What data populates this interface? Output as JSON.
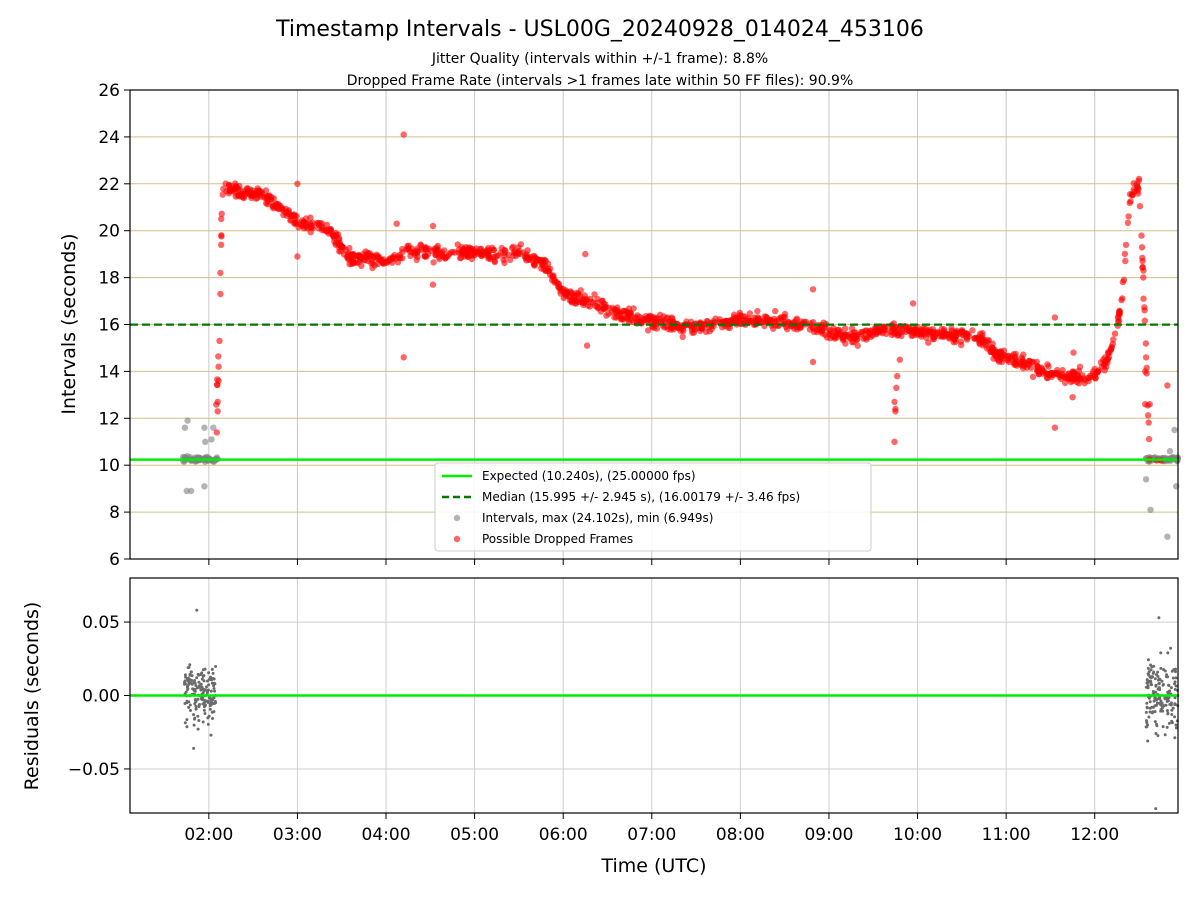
{
  "chart_data": {
    "type": "scatter",
    "title": "Timestamp Intervals - USL00G_20240928_014024_453106",
    "subtitles": [
      "Jitter Quality (intervals within +/-1 frame): 8.8%",
      "Dropped Frame Rate (intervals >1 frames late within 50 FF files): 90.9%"
    ],
    "xlabel": "Time (UTC)",
    "x_range_hours": [
      1.11,
      12.94
    ],
    "x_ticks": [
      {
        "value": 2,
        "label": "02:00"
      },
      {
        "value": 3,
        "label": "03:00"
      },
      {
        "value": 4,
        "label": "04:00"
      },
      {
        "value": 5,
        "label": "05:00"
      },
      {
        "value": 6,
        "label": "06:00"
      },
      {
        "value": 7,
        "label": "07:00"
      },
      {
        "value": 8,
        "label": "08:00"
      },
      {
        "value": 9,
        "label": "09:00"
      },
      {
        "value": 10,
        "label": "10:00"
      },
      {
        "value": 11,
        "label": "11:00"
      },
      {
        "value": 12,
        "label": "12:00"
      }
    ],
    "top_panel": {
      "ylabel": "Intervals (seconds)",
      "ylim": [
        6,
        26
      ],
      "y_ticks": [
        6,
        8,
        10,
        12,
        14,
        16,
        18,
        20,
        22,
        24,
        26
      ],
      "expected_interval": 10.24,
      "median_interval": 15.995,
      "legend_position": "lower-center",
      "legend": [
        "Expected (10.240s), (25.00000 fps)",
        "Median (15.995 +/- 2.945 s), (16.00179 +/- 3.46 fps)",
        "Intervals, max (24.102s), min (6.949s)",
        "Possible Dropped Frames"
      ],
      "dropped_frames_trend": [
        [
          2.08,
          12.2
        ],
        [
          2.12,
          16.0
        ],
        [
          2.15,
          21.6
        ],
        [
          2.2,
          21.9
        ],
        [
          2.4,
          21.6
        ],
        [
          2.6,
          21.6
        ],
        [
          2.8,
          21.0
        ],
        [
          3.0,
          20.4
        ],
        [
          3.2,
          20.2
        ],
        [
          3.4,
          19.9
        ],
        [
          3.5,
          19.3
        ],
        [
          3.6,
          18.8
        ],
        [
          3.8,
          18.9
        ],
        [
          4.0,
          18.6
        ],
        [
          4.1,
          18.8
        ],
        [
          4.2,
          19.1
        ],
        [
          4.5,
          19.1
        ],
        [
          5.0,
          19.1
        ],
        [
          5.3,
          19.0
        ],
        [
          5.5,
          19.1
        ],
        [
          5.8,
          18.5
        ],
        [
          6.0,
          17.3
        ],
        [
          6.3,
          17.0
        ],
        [
          6.6,
          16.5
        ],
        [
          7.0,
          16.1
        ],
        [
          7.3,
          15.9
        ],
        [
          7.6,
          15.9
        ],
        [
          8.0,
          16.2
        ],
        [
          8.3,
          16.2
        ],
        [
          8.6,
          16.0
        ],
        [
          9.0,
          15.7
        ],
        [
          9.3,
          15.4
        ],
        [
          9.6,
          15.8
        ],
        [
          10.0,
          15.7
        ],
        [
          10.4,
          15.5
        ],
        [
          10.7,
          15.4
        ],
        [
          10.9,
          14.7
        ],
        [
          11.2,
          14.4
        ],
        [
          11.4,
          14.0
        ],
        [
          11.7,
          13.8
        ],
        [
          12.0,
          13.8
        ],
        [
          12.15,
          14.5
        ],
        [
          12.3,
          16.8
        ],
        [
          12.4,
          21.5
        ],
        [
          12.5,
          22.0
        ],
        [
          12.57,
          16.0
        ],
        [
          12.62,
          10.3
        ]
      ],
      "dropped_frames_outliers": [
        [
          2.1,
          12.3
        ],
        [
          2.1,
          12.7
        ],
        [
          2.11,
          14.2
        ],
        [
          2.11,
          13.6
        ],
        [
          2.12,
          15.3
        ],
        [
          2.13,
          17.3
        ],
        [
          2.13,
          18.2
        ],
        [
          2.14,
          19.4
        ],
        [
          2.14,
          20.5
        ],
        [
          2.09,
          11.4
        ],
        [
          3.0,
          22.0
        ],
        [
          3.0,
          18.9
        ],
        [
          4.2,
          24.1
        ],
        [
          4.2,
          14.6
        ],
        [
          4.12,
          20.3
        ],
        [
          4.53,
          20.2
        ],
        [
          4.53,
          17.7
        ],
        [
          6.25,
          19.0
        ],
        [
          6.27,
          15.1
        ],
        [
          8.82,
          17.5
        ],
        [
          8.82,
          14.4
        ],
        [
          9.75,
          12.3
        ],
        [
          9.75,
          12.4
        ],
        [
          9.74,
          12.7
        ],
        [
          9.76,
          13.3
        ],
        [
          9.77,
          13.8
        ],
        [
          9.74,
          11.0
        ],
        [
          9.8,
          14.5
        ],
        [
          9.95,
          16.9
        ],
        [
          11.55,
          16.3
        ],
        [
          11.55,
          11.6
        ],
        [
          11.75,
          12.9
        ],
        [
          11.76,
          14.8
        ],
        [
          12.57,
          14.0
        ],
        [
          12.57,
          12.6
        ],
        [
          12.62,
          12.6
        ],
        [
          12.55,
          18.3
        ],
        [
          12.55,
          17.1
        ],
        [
          12.7,
          10.2
        ],
        [
          12.75,
          10.2
        ],
        [
          12.82,
          13.4
        ]
      ],
      "interval_clusters": [
        {
          "x_range": [
            1.7,
            2.1
          ],
          "center": 10.25,
          "spread": 0.15
        },
        {
          "x_range": [
            12.58,
            12.94
          ],
          "center": 10.25,
          "spread": 0.15
        }
      ],
      "interval_outliers": [
        [
          1.73,
          11.6
        ],
        [
          1.76,
          11.9
        ],
        [
          1.75,
          8.9
        ],
        [
          1.8,
          8.9
        ],
        [
          1.95,
          11.6
        ],
        [
          1.95,
          9.1
        ],
        [
          1.96,
          11.0
        ],
        [
          2.03,
          11.1
        ],
        [
          2.05,
          11.6
        ],
        [
          12.58,
          9.4
        ],
        [
          12.63,
          8.1
        ],
        [
          12.82,
          6.95
        ],
        [
          12.85,
          10.6
        ],
        [
          12.9,
          11.5
        ],
        [
          12.92,
          9.1
        ]
      ]
    },
    "bottom_panel": {
      "ylabel": "Residuals (seconds)",
      "ylim": [
        -0.08,
        0.08
      ],
      "y_ticks": [
        {
          "value": 0.05,
          "label": "0.05"
        },
        {
          "value": 0.0,
          "label": "0.00"
        },
        {
          "value": -0.05,
          "label": "−0.05"
        }
      ],
      "zero_line": 0,
      "residual_clusters": [
        {
          "x_range": [
            1.72,
            2.08
          ],
          "min": -0.036,
          "max": 0.058,
          "sd": 0.018
        },
        {
          "x_range": [
            12.58,
            12.94
          ],
          "min": -0.077,
          "max": 0.053,
          "sd": 0.022
        }
      ]
    },
    "colors": {
      "expected": "#00ee00",
      "median": "#007700",
      "dropped": "#ff0000",
      "intervals": "#808080",
      "residual_points": "#6b6b6b",
      "grid_vertical": "#c8c8c8",
      "grid_horizontal_top": "#d2c08a",
      "grid_bottom": "#cfcfcf"
    }
  }
}
